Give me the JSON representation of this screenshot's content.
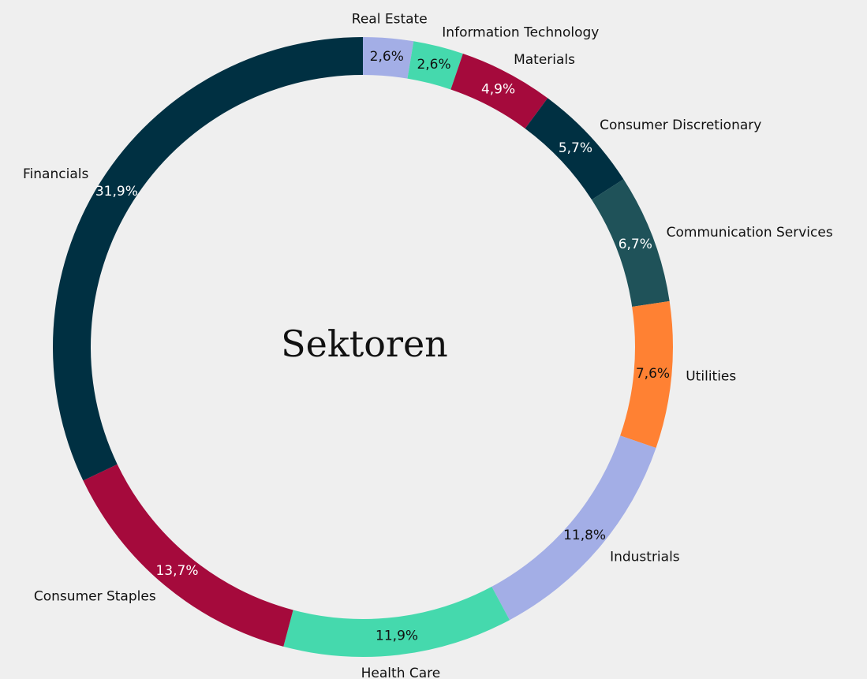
{
  "chart_data": {
    "type": "donut",
    "title": "Sektoren",
    "categories": [
      "Real Estate",
      "Information Technology",
      "Materials",
      "Consumer Discretionary",
      "Communication Services",
      "Utilities",
      "Industrials",
      "Health Care",
      "Consumer Staples",
      "Financials"
    ],
    "values": [
      2.6,
      2.6,
      4.9,
      5.7,
      6.7,
      7.6,
      11.8,
      11.9,
      13.7,
      31.9
    ],
    "value_labels": [
      "2,6%",
      "2,6%",
      "4,9%",
      "5,7%",
      "6,7%",
      "7,6%",
      "11,8%",
      "11,9%",
      "13,7%",
      "31,9%"
    ],
    "colors": [
      "#a3aee6",
      "#45d9ad",
      "#a50a3c",
      "#003042",
      "#1f5259",
      "#ff8133",
      "#a3aee6",
      "#45d9ad",
      "#a50a3c",
      "#003042"
    ]
  }
}
